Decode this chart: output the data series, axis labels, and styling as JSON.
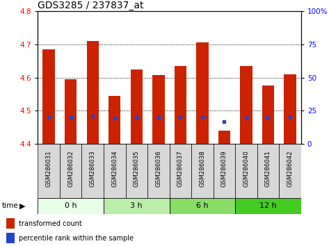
{
  "title": "GDS3285 / 237837_at",
  "samples": [
    "GSM286031",
    "GSM286032",
    "GSM286033",
    "GSM286034",
    "GSM286035",
    "GSM286036",
    "GSM286037",
    "GSM286038",
    "GSM286039",
    "GSM286040",
    "GSM286041",
    "GSM286042"
  ],
  "bar_tops": [
    4.685,
    4.595,
    4.71,
    4.545,
    4.625,
    4.608,
    4.635,
    4.705,
    4.44,
    4.635,
    4.575,
    4.61
  ],
  "bar_base": 4.4,
  "blue_y": [
    4.482,
    4.48,
    4.483,
    4.478,
    4.48,
    4.481,
    4.481,
    4.482,
    4.467,
    4.48,
    4.48,
    4.481
  ],
  "ylim": [
    4.4,
    4.8
  ],
  "yticks_left": [
    4.4,
    4.5,
    4.6,
    4.7,
    4.8
  ],
  "yticks_right": [
    0,
    25,
    50,
    75,
    100
  ],
  "ytick_labels_right": [
    "0",
    "25",
    "50",
    "75",
    "100%"
  ],
  "bar_color": "#cc2200",
  "blue_color": "#2244cc",
  "bar_width": 0.55,
  "time_groups": [
    {
      "label": "0 h",
      "start": 0,
      "end": 3,
      "color": "#e8ffe8"
    },
    {
      "label": "3 h",
      "start": 3,
      "end": 6,
      "color": "#bbeeaa"
    },
    {
      "label": "6 h",
      "start": 6,
      "end": 9,
      "color": "#88dd66"
    },
    {
      "label": "12 h",
      "start": 9,
      "end": 12,
      "color": "#44cc22"
    }
  ],
  "xlabel_time": "time",
  "background_sample_row": "#d8d8d8",
  "legend_items": [
    {
      "label": "transformed count",
      "color": "#cc2200"
    },
    {
      "label": "percentile rank within the sample",
      "color": "#2244cc"
    }
  ],
  "grid_color": "#000000",
  "title_fontsize": 10,
  "tick_label_fontsize": 7.5
}
